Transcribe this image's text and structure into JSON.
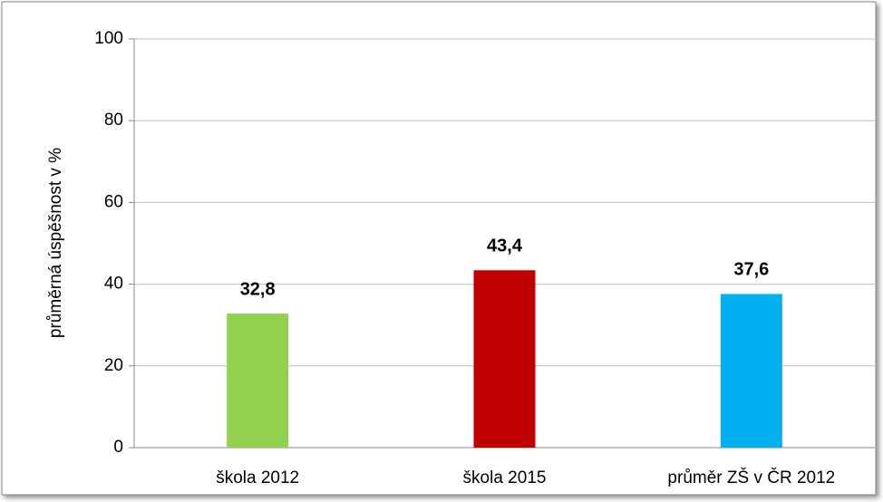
{
  "chart_data": {
    "type": "bar",
    "y_axis_label": "průměrná úspěšnost  v   %",
    "categories": [
      "škola 2012",
      "škola 2015",
      "průměr ZŠ v ČR 2012"
    ],
    "values": [
      32.8,
      43.4,
      37.6
    ],
    "value_labels": [
      "32,8",
      "43,4",
      "37,6"
    ],
    "colors": [
      "#92d050",
      "#c00000",
      "#00b0f0"
    ],
    "ylim": [
      0,
      100
    ],
    "yticks": [
      0,
      20,
      40,
      60,
      80,
      100
    ],
    "grid": true
  }
}
